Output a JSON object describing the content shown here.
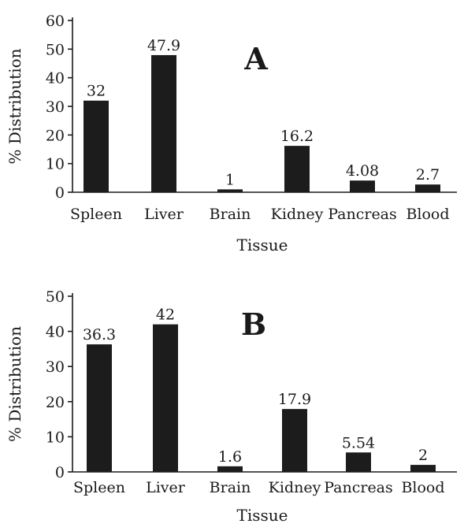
{
  "chart_data": [
    {
      "type": "bar",
      "panel_label": "A",
      "categories": [
        "Spleen",
        "Liver",
        "Brain",
        "Kidney",
        "Pancreas",
        "Blood"
      ],
      "values": [
        32,
        47.9,
        1,
        16.2,
        4.08,
        2.7
      ],
      "data_labels": [
        "32",
        "47.9",
        "1",
        "16.2",
        "4.08",
        "2.7"
      ],
      "xlabel": "Tissue",
      "ylabel": "% Distribution",
      "ylim": [
        0,
        60
      ],
      "yticks": [
        0,
        10,
        20,
        30,
        40,
        50,
        60
      ],
      "grid": false,
      "legend": "none"
    },
    {
      "type": "bar",
      "panel_label": "B",
      "categories": [
        "Spleen",
        "Liver",
        "Brain",
        "Kidney",
        "Pancreas",
        "Blood"
      ],
      "values": [
        36.3,
        42,
        1.6,
        17.9,
        5.54,
        2
      ],
      "data_labels": [
        "36.3",
        "42",
        "1.6",
        "17.9",
        "5.54",
        "2"
      ],
      "xlabel": "Tissue",
      "ylabel": "% Distribution",
      "ylim": [
        0,
        50
      ],
      "yticks": [
        0,
        10,
        20,
        30,
        40,
        50
      ],
      "grid": false,
      "legend": "none"
    }
  ],
  "colors": {
    "bar": "#1c1c1c",
    "text": "#1a1a1a",
    "background": "#ffffff"
  }
}
